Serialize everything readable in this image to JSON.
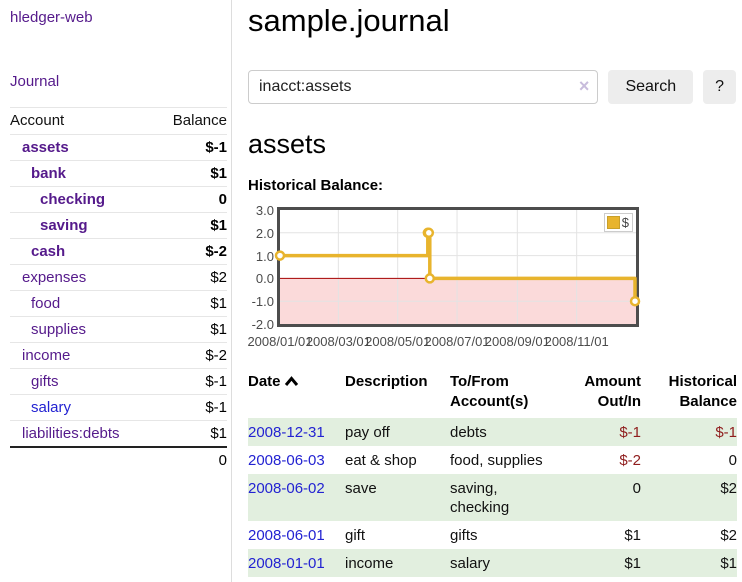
{
  "sidebar": {
    "brand": "hledger-web",
    "journal_link": "Journal",
    "accounts": {
      "header_account": "Account",
      "header_balance": "Balance",
      "rows": [
        {
          "label": "assets",
          "indent": 1,
          "bold": true,
          "balance": "$-1",
          "neg": "strong"
        },
        {
          "label": "bank",
          "indent": 2,
          "bold": true,
          "balance": "$1"
        },
        {
          "label": "checking",
          "indent": 3,
          "bold": true,
          "balance": "0"
        },
        {
          "label": "saving",
          "indent": 3,
          "bold": true,
          "balance": "$1"
        },
        {
          "label": "cash",
          "indent": 2,
          "bold": true,
          "balance": "$-2",
          "neg": "strong"
        },
        {
          "label": "expenses",
          "indent": 1,
          "bold": false,
          "balance": "$2"
        },
        {
          "label": "food",
          "indent": 2,
          "bold": false,
          "balance": "$1"
        },
        {
          "label": "supplies",
          "indent": 2,
          "bold": false,
          "balance": "$1"
        },
        {
          "label": "income",
          "indent": 1,
          "bold": false,
          "balance": "$-2",
          "neg": "soft"
        },
        {
          "label": "gifts",
          "indent": 2,
          "bold": false,
          "balance": "$-1",
          "neg": "soft"
        },
        {
          "label": "salary",
          "indent": 2,
          "bold": false,
          "balance": "$-1",
          "neg": "soft",
          "link_color": "blue"
        },
        {
          "label": "liabilities:debts",
          "indent": 1,
          "bold": false,
          "balance": "$1"
        }
      ],
      "total": "0"
    }
  },
  "main": {
    "title": "sample.journal",
    "search": {
      "value": "inacct:assets",
      "clear_icon": "×",
      "button_label": "Search",
      "help_label": "?"
    },
    "account_heading": "assets",
    "chart_heading": "Historical Balance:"
  },
  "chart_data": {
    "type": "line",
    "title": "Historical Balance",
    "style": "step-after",
    "series": [
      {
        "name": "$",
        "color": "#e8b42d",
        "points": [
          {
            "date": "2008-01-01",
            "value": 1
          },
          {
            "date": "2008-06-01",
            "value": 2
          },
          {
            "date": "2008-06-02",
            "value": 2
          },
          {
            "date": "2008-06-03",
            "value": 0
          },
          {
            "date": "2008-12-31",
            "value": -1
          }
        ]
      }
    ],
    "x_range": [
      "2008-01-01",
      "2009-01-01"
    ],
    "y_range": [
      -2,
      3
    ],
    "y_ticks": [
      3.0,
      2.0,
      1.0,
      0.0,
      -1.0,
      -2.0
    ],
    "x_ticks": [
      {
        "date": "2008-01-01",
        "label": "2008/01/01"
      },
      {
        "date": "2008-03-01",
        "label": "2008/03/01"
      },
      {
        "date": "2008-05-01",
        "label": "2008/05/01"
      },
      {
        "date": "2008-07-01",
        "label": "2008/07/01"
      },
      {
        "date": "2008-09-01",
        "label": "2008/09/01"
      },
      {
        "date": "2008-11-01",
        "label": "2008/11/01"
      }
    ],
    "grid": true,
    "grid_color": "#e3e3e3",
    "negative_region_color": "#fbdada",
    "zero_line_color": "#a40000",
    "legend": {
      "position": "top-right",
      "label": "$",
      "swatch_color": "#e8b42d"
    }
  },
  "register": {
    "headers": [
      {
        "label": "Date",
        "sorted": "asc",
        "align": "left"
      },
      {
        "label": "Description",
        "align": "left"
      },
      {
        "label": "To/From Account(s)",
        "align": "left"
      },
      {
        "label": "Amount Out/In",
        "align": "right"
      },
      {
        "label": "Historical Balance",
        "align": "right"
      }
    ],
    "rows": [
      {
        "date": "2008-12-31",
        "description": "pay off",
        "accounts": "debts",
        "amount": "$-1",
        "amount_negative": true,
        "balance": "$-1",
        "balance_negative": true,
        "highlighted": true
      },
      {
        "date": "2008-06-03",
        "description": "eat & shop",
        "accounts": "food, supplies",
        "amount": "$-2",
        "amount_negative": true,
        "balance": "0",
        "balance_negative": false,
        "highlighted": false
      },
      {
        "date": "2008-06-02",
        "description": "save",
        "accounts": "saving, checking",
        "amount": "0",
        "amount_negative": false,
        "balance": "$2",
        "balance_negative": false,
        "highlighted": true
      },
      {
        "date": "2008-06-01",
        "description": "gift",
        "accounts": "gifts",
        "amount": "$1",
        "amount_negative": false,
        "balance": "$2",
        "balance_negative": false,
        "highlighted": false
      },
      {
        "date": "2008-01-01",
        "description": "income",
        "accounts": "salary",
        "amount": "$1",
        "amount_negative": false,
        "balance": "$1",
        "balance_negative": false,
        "highlighted": true
      }
    ]
  },
  "colors": {
    "purple_link": "#551a8b",
    "blue_link": "#2323d2",
    "negative_strong": "#8f1d1d",
    "negative_soft": "#bd8484",
    "row_highlight": "#e2efdf",
    "chart_line": "#e8b42d"
  }
}
